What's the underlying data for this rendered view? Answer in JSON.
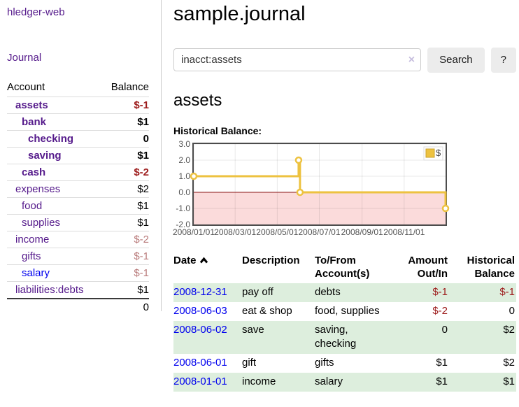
{
  "sidebar": {
    "brand": "hledger-web",
    "journal_label": "Journal",
    "accounts_table": {
      "col_account": "Account",
      "col_balance": "Balance",
      "rows": [
        {
          "name": "assets",
          "depth": 1,
          "bold": true,
          "name_color": "purple",
          "balance": "$-1",
          "balance_color": "neg"
        },
        {
          "name": "bank",
          "depth": 2,
          "bold": true,
          "name_color": "purple",
          "balance": "$1",
          "balance_color": "black"
        },
        {
          "name": "checking",
          "depth": 3,
          "bold": true,
          "name_color": "purple",
          "balance": "0",
          "balance_color": "black"
        },
        {
          "name": "saving",
          "depth": 3,
          "bold": true,
          "name_color": "purple",
          "balance": "$1",
          "balance_color": "black"
        },
        {
          "name": "cash",
          "depth": 2,
          "bold": true,
          "name_color": "purple",
          "balance": "$-2",
          "balance_color": "neg"
        },
        {
          "name": "expenses",
          "depth": 1,
          "bold": false,
          "name_color": "purple",
          "balance": "$2",
          "balance_color": "black"
        },
        {
          "name": "food",
          "depth": 2,
          "bold": false,
          "name_color": "purple",
          "balance": "$1",
          "balance_color": "black"
        },
        {
          "name": "supplies",
          "depth": 2,
          "bold": false,
          "name_color": "purple",
          "balance": "$1",
          "balance_color": "black"
        },
        {
          "name": "income",
          "depth": 1,
          "bold": false,
          "name_color": "purple",
          "balance": "$-2",
          "balance_color": "negmuted"
        },
        {
          "name": "gifts",
          "depth": 2,
          "bold": false,
          "name_color": "purple",
          "balance": "$-1",
          "balance_color": "negmuted"
        },
        {
          "name": "salary",
          "depth": 2,
          "bold": false,
          "name_color": "blue",
          "balance": "$-1",
          "balance_color": "negmuted"
        },
        {
          "name": "liabilities:debts",
          "depth": 1,
          "bold": false,
          "name_color": "purple",
          "balance": "$1",
          "balance_color": "black"
        }
      ],
      "total": "0"
    }
  },
  "main": {
    "title": "sample.journal",
    "search": {
      "value": "inacct:assets",
      "clear_icon": "×",
      "button_label": "Search",
      "help_label": "?"
    },
    "account_heading": "assets",
    "chart_label": "Historical Balance:",
    "transactions": {
      "headers": {
        "date": "Date",
        "date_sort_icon": "chevron-up",
        "description": "Description",
        "tofrom_line1": "To/From",
        "tofrom_line2": "Account(s)",
        "amount_line1": "Amount",
        "amount_line2": "Out/In",
        "balance_line1": "Historical",
        "balance_line2": "Balance"
      },
      "rows": [
        {
          "date": "2008-12-31",
          "description": "pay off",
          "tofrom": "debts",
          "amount": "$-1",
          "amount_neg": true,
          "balance": "$-1",
          "balance_neg": true,
          "stripe": true
        },
        {
          "date": "2008-06-03",
          "description": "eat & shop",
          "tofrom": "food, supplies",
          "amount": "$-2",
          "amount_neg": true,
          "balance": "0",
          "balance_neg": false,
          "stripe": false
        },
        {
          "date": "2008-06-02",
          "description": "save",
          "tofrom": "saving, checking",
          "amount": "0",
          "amount_neg": false,
          "balance": "$2",
          "balance_neg": false,
          "stripe": true
        },
        {
          "date": "2008-06-01",
          "description": "gift",
          "tofrom": "gifts",
          "amount": "$1",
          "amount_neg": false,
          "balance": "$2",
          "balance_neg": false,
          "stripe": false
        },
        {
          "date": "2008-01-01",
          "description": "income",
          "tofrom": "salary",
          "amount": "$1",
          "amount_neg": false,
          "balance": "$1",
          "balance_neg": false,
          "stripe": true
        }
      ]
    }
  },
  "chart_data": {
    "type": "line",
    "title": "Historical Balance:",
    "x_range": [
      "2008-01-01",
      "2008-12-31"
    ],
    "ylim": [
      -2,
      3
    ],
    "y_ticks": [
      "3.0",
      "2.0",
      "1.0",
      "0.0",
      "-1.0",
      "-2.0"
    ],
    "x_ticks": [
      {
        "label": "2008/01/01",
        "date": "2008-01-01"
      },
      {
        "label": "2008/03/01",
        "date": "2008-03-01"
      },
      {
        "label": "2008/05/01",
        "date": "2008-05-01"
      },
      {
        "label": "2008/07/01",
        "date": "2008-07-01"
      },
      {
        "label": "2008/09/01",
        "date": "2008-09-01"
      },
      {
        "label": "2008/11/01",
        "date": "2008-11-01"
      }
    ],
    "series": [
      {
        "name": "$",
        "color": "#edc240",
        "style": "step",
        "points": [
          {
            "date": "2008-01-01",
            "value": 1
          },
          {
            "date": "2008-06-01",
            "value": 2
          },
          {
            "date": "2008-06-03",
            "value": 0
          },
          {
            "date": "2008-12-31",
            "value": -1
          }
        ]
      }
    ],
    "grid": true,
    "legend_position": "top-right",
    "negative_fill": "#fbdbdb",
    "zero_line_color": "#8b1515"
  },
  "colors": {
    "link_purple": "#551a8b",
    "link_blue": "#0000ee",
    "negative_red": "#9d1c1c",
    "negative_muted": "#b97b7b",
    "stripe_green": "#ddeedd",
    "series_yellow": "#edc240",
    "negative_area_pink": "#fbdbdb"
  }
}
